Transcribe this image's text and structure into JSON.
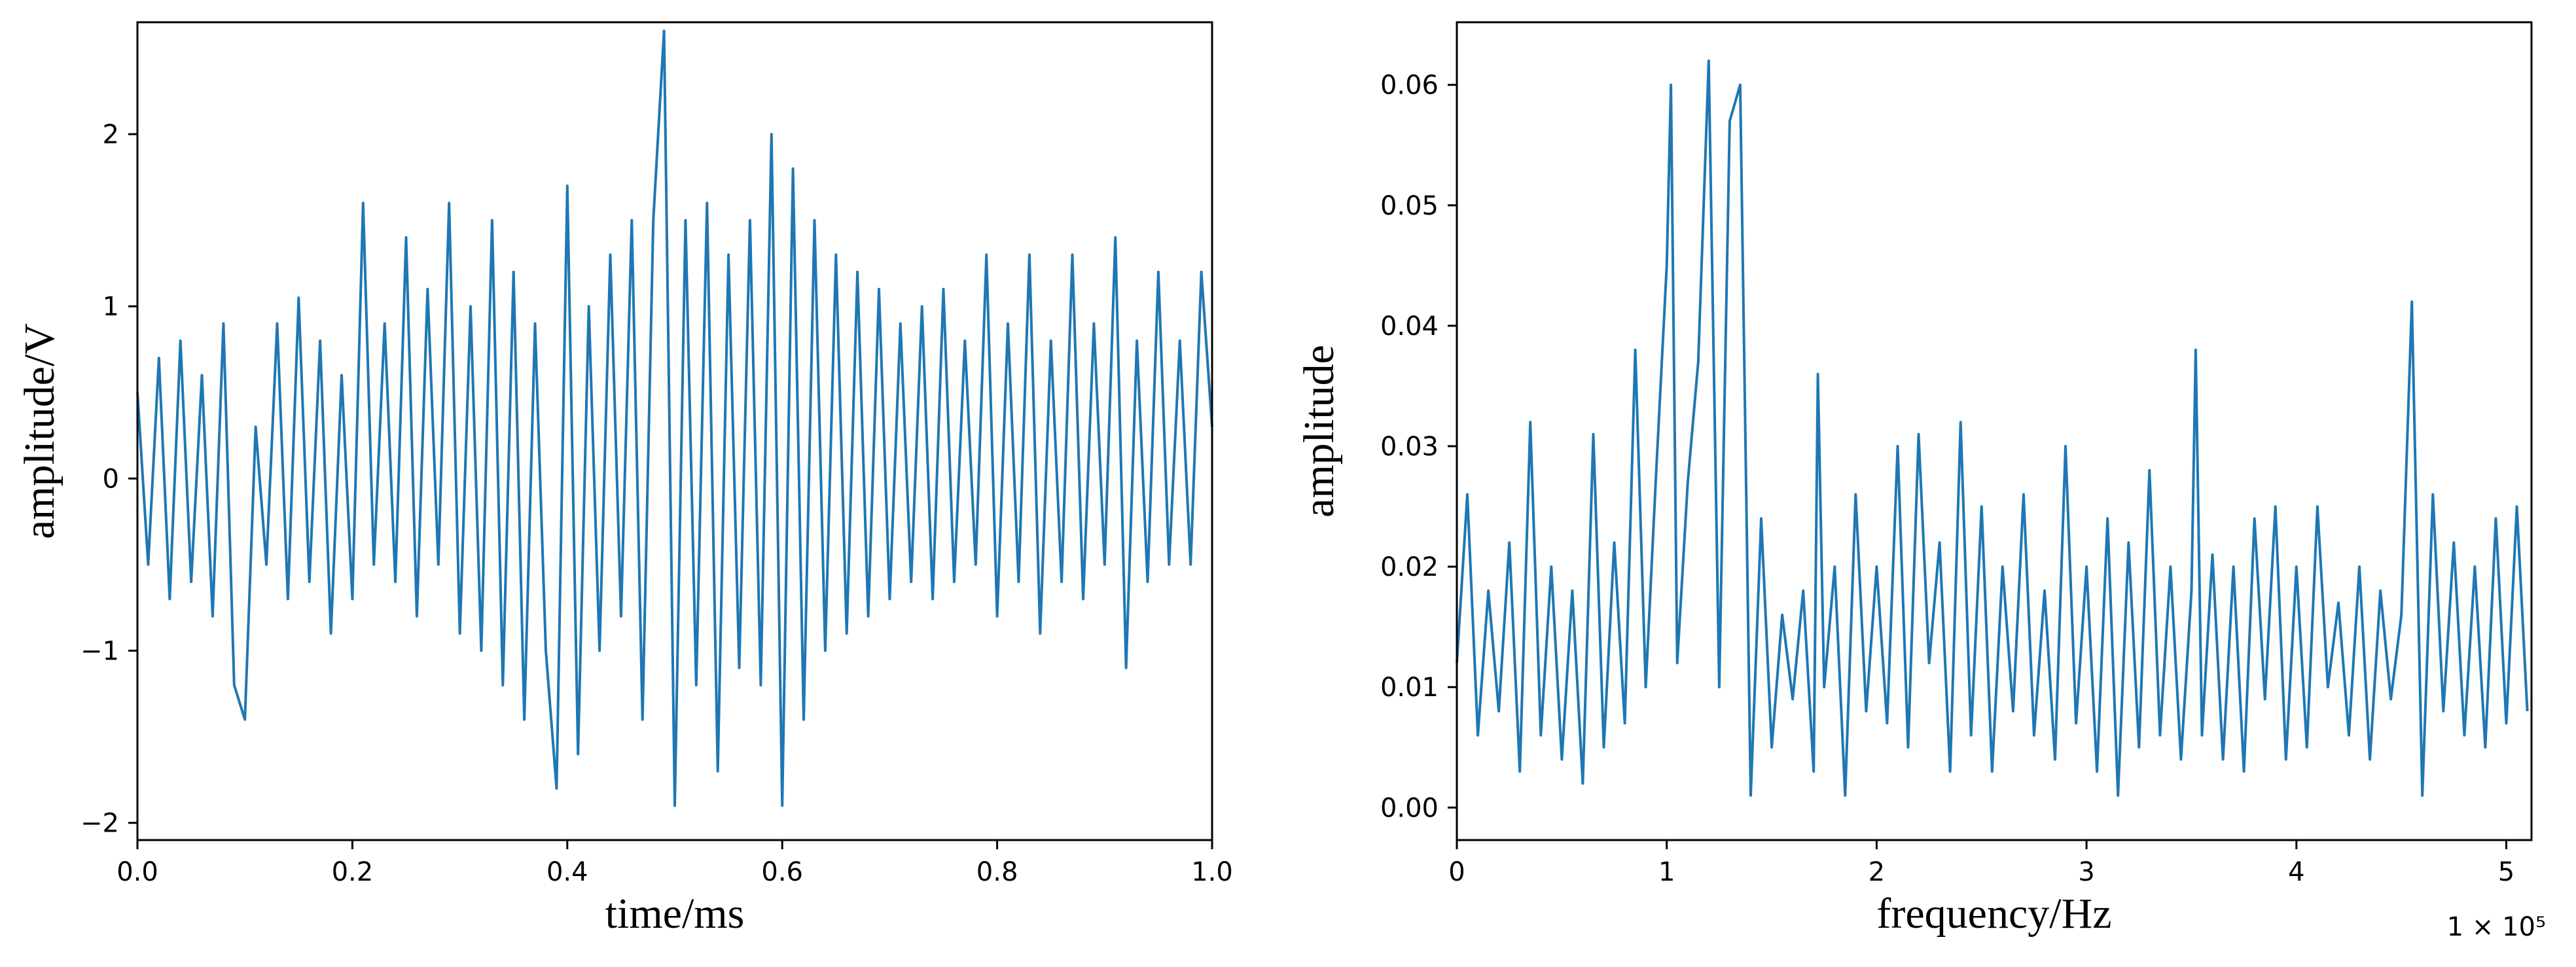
{
  "chart_data": [
    {
      "type": "line",
      "title": "",
      "xlabel": "time/ms",
      "ylabel": "amplitude/V",
      "xlim": [
        0.0,
        1.0
      ],
      "ylim": [
        -2.1,
        2.65
      ],
      "xticks": [
        0.0,
        0.2,
        0.4,
        0.6,
        0.8,
        1.0
      ],
      "xtick_labels": [
        "0.0",
        "0.2",
        "0.4",
        "0.6",
        "0.8",
        "1.0"
      ],
      "yticks": [
        -2,
        -1,
        0,
        1,
        2
      ],
      "ytick_labels": [
        "−2",
        "−1",
        "0",
        "1",
        "2"
      ],
      "grid": false,
      "color": "#1f77b4",
      "series": [
        {
          "x": [
            0.0,
            0.01,
            0.02,
            0.03,
            0.04,
            0.05,
            0.06,
            0.07,
            0.08,
            0.09,
            0.1,
            0.11,
            0.12,
            0.13,
            0.14,
            0.15,
            0.16,
            0.17,
            0.18,
            0.19,
            0.2,
            0.21,
            0.22,
            0.23,
            0.24,
            0.25,
            0.26,
            0.27,
            0.28,
            0.29,
            0.3,
            0.31,
            0.32,
            0.33,
            0.34,
            0.35,
            0.36,
            0.37,
            0.38,
            0.39,
            0.4,
            0.41,
            0.42,
            0.43,
            0.44,
            0.45,
            0.46,
            0.47,
            0.48,
            0.49,
            0.5,
            0.51,
            0.52,
            0.53,
            0.54,
            0.55,
            0.56,
            0.57,
            0.58,
            0.59,
            0.6,
            0.61,
            0.62,
            0.63,
            0.64,
            0.65,
            0.66,
            0.67,
            0.68,
            0.69,
            0.7,
            0.71,
            0.72,
            0.73,
            0.74,
            0.75,
            0.76,
            0.77,
            0.78,
            0.79,
            0.8,
            0.81,
            0.82,
            0.83,
            0.84,
            0.85,
            0.86,
            0.87,
            0.88,
            0.89,
            0.9,
            0.91,
            0.92,
            0.93,
            0.94,
            0.95,
            0.96,
            0.97,
            0.98,
            0.99,
            1.0
          ],
          "y": [
            0.5,
            -0.5,
            0.7,
            -0.7,
            0.8,
            -0.6,
            0.6,
            -0.8,
            0.9,
            -1.2,
            -1.4,
            0.3,
            -0.5,
            0.9,
            -0.7,
            1.05,
            -0.6,
            0.8,
            -0.9,
            0.6,
            -0.7,
            1.6,
            -0.5,
            0.9,
            -0.6,
            1.4,
            -0.8,
            1.1,
            -0.5,
            1.6,
            -0.9,
            1.0,
            -1.0,
            1.5,
            -1.2,
            1.2,
            -1.4,
            0.9,
            -1.0,
            -1.8,
            1.7,
            -1.6,
            1.0,
            -1.0,
            1.3,
            -0.8,
            1.5,
            -1.4,
            1.5,
            2.6,
            -1.9,
            1.5,
            -1.2,
            1.6,
            -1.7,
            1.3,
            -1.1,
            1.5,
            -1.2,
            2.0,
            -1.9,
            1.8,
            -1.4,
            1.5,
            -1.0,
            1.3,
            -0.9,
            1.2,
            -0.8,
            1.1,
            -0.7,
            0.9,
            -0.6,
            1.0,
            -0.7,
            1.1,
            -0.6,
            0.8,
            -0.5,
            1.3,
            -0.8,
            0.9,
            -0.6,
            1.3,
            -0.9,
            0.8,
            -0.6,
            1.3,
            -0.7,
            0.9,
            -0.5,
            1.4,
            -1.1,
            0.8,
            -0.6,
            1.2,
            -0.5,
            0.8,
            -0.5,
            1.2,
            0.3
          ]
        }
      ]
    },
    {
      "type": "line",
      "title": "",
      "xlabel": "frequency/Hz",
      "ylabel": "amplitude",
      "xlim": [
        0,
        5.12
      ],
      "ylim": [
        -0.0027,
        0.0652
      ],
      "xticks": [
        0,
        1,
        2,
        3,
        4,
        5
      ],
      "xtick_labels": [
        "0",
        "1",
        "2",
        "3",
        "4",
        "5"
      ],
      "yticks": [
        0.0,
        0.01,
        0.02,
        0.03,
        0.04,
        0.05,
        0.06
      ],
      "ytick_labels": [
        "0.00",
        "0.01",
        "0.02",
        "0.03",
        "0.04",
        "0.05",
        "0.06"
      ],
      "x_offset_label": "1 × 10⁵",
      "grid": false,
      "color": "#1f77b4",
      "series": [
        {
          "x": [
            0.0,
            0.05,
            0.1,
            0.15,
            0.2,
            0.25,
            0.3,
            0.35,
            0.4,
            0.45,
            0.5,
            0.55,
            0.6,
            0.65,
            0.7,
            0.75,
            0.8,
            0.85,
            0.9,
            0.95,
            1.0,
            1.02,
            1.05,
            1.1,
            1.15,
            1.2,
            1.25,
            1.3,
            1.35,
            1.4,
            1.45,
            1.5,
            1.55,
            1.6,
            1.65,
            1.7,
            1.72,
            1.75,
            1.8,
            1.85,
            1.9,
            1.95,
            2.0,
            2.05,
            2.1,
            2.15,
            2.2,
            2.25,
            2.3,
            2.35,
            2.4,
            2.45,
            2.5,
            2.55,
            2.6,
            2.65,
            2.7,
            2.75,
            2.8,
            2.85,
            2.9,
            2.95,
            3.0,
            3.05,
            3.1,
            3.15,
            3.2,
            3.25,
            3.3,
            3.35,
            3.4,
            3.45,
            3.5,
            3.52,
            3.55,
            3.6,
            3.65,
            3.7,
            3.75,
            3.8,
            3.85,
            3.9,
            3.95,
            4.0,
            4.05,
            4.1,
            4.15,
            4.2,
            4.25,
            4.3,
            4.35,
            4.4,
            4.45,
            4.5,
            4.55,
            4.6,
            4.65,
            4.7,
            4.75,
            4.8,
            4.85,
            4.9,
            4.95,
            5.0,
            5.05,
            5.1
          ],
          "y": [
            0.012,
            0.026,
            0.006,
            0.018,
            0.008,
            0.022,
            0.003,
            0.032,
            0.006,
            0.02,
            0.004,
            0.018,
            0.002,
            0.031,
            0.005,
            0.022,
            0.007,
            0.038,
            0.01,
            0.028,
            0.045,
            0.06,
            0.012,
            0.027,
            0.037,
            0.062,
            0.01,
            0.057,
            0.06,
            0.001,
            0.024,
            0.005,
            0.016,
            0.009,
            0.018,
            0.003,
            0.036,
            0.01,
            0.02,
            0.001,
            0.026,
            0.008,
            0.02,
            0.007,
            0.03,
            0.005,
            0.031,
            0.012,
            0.022,
            0.003,
            0.032,
            0.006,
            0.025,
            0.003,
            0.02,
            0.008,
            0.026,
            0.006,
            0.018,
            0.004,
            0.03,
            0.007,
            0.02,
            0.003,
            0.024,
            0.001,
            0.022,
            0.005,
            0.028,
            0.006,
            0.02,
            0.004,
            0.018,
            0.038,
            0.006,
            0.021,
            0.004,
            0.02,
            0.003,
            0.024,
            0.009,
            0.025,
            0.004,
            0.02,
            0.005,
            0.025,
            0.01,
            0.017,
            0.006,
            0.02,
            0.004,
            0.018,
            0.009,
            0.016,
            0.042,
            0.001,
            0.026,
            0.008,
            0.022,
            0.006,
            0.02,
            0.005,
            0.024,
            0.007,
            0.025,
            0.008
          ]
        }
      ]
    }
  ]
}
